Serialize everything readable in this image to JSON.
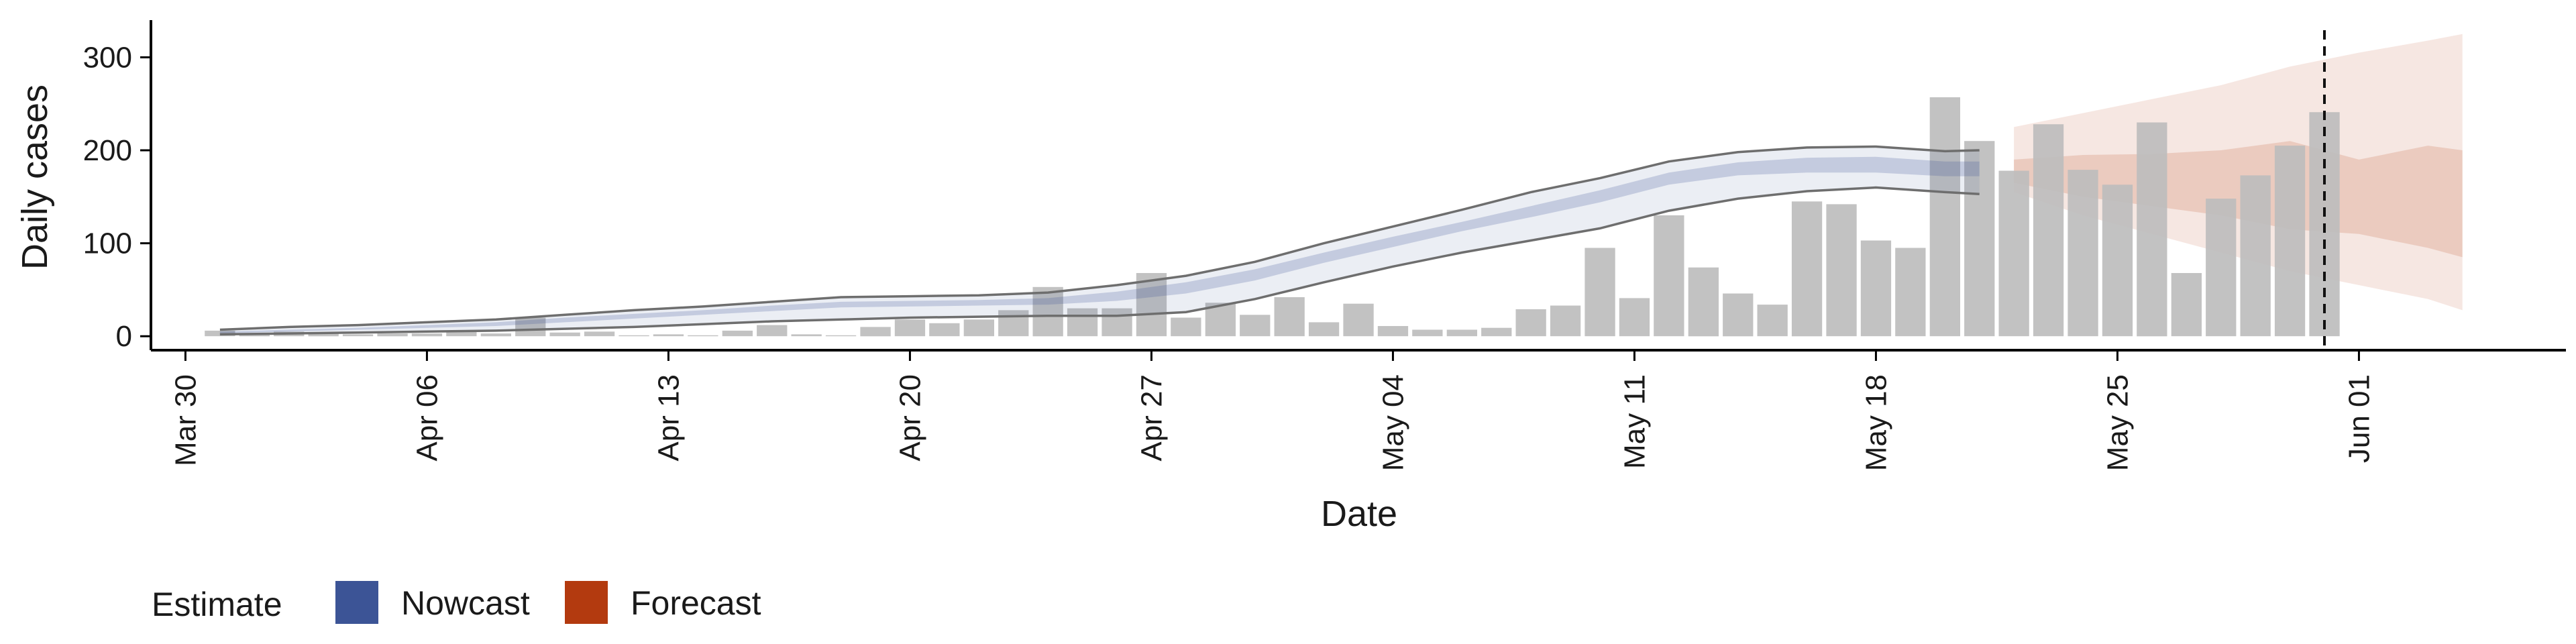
{
  "chart_data": {
    "type": "bar",
    "title": "",
    "xlabel": "Date",
    "ylabel": "Daily cases",
    "ylim": [
      -15,
      340
    ],
    "yticks": [
      0,
      100,
      200,
      300
    ],
    "xlim": [
      "2020-03-29",
      "2020-06-07"
    ],
    "xticks": [
      {
        "date": "2020-03-30",
        "label": "Mar 30"
      },
      {
        "date": "2020-04-06",
        "label": "Apr 06"
      },
      {
        "date": "2020-04-13",
        "label": "Apr 13"
      },
      {
        "date": "2020-04-20",
        "label": "Apr 20"
      },
      {
        "date": "2020-04-27",
        "label": "Apr 27"
      },
      {
        "date": "2020-05-04",
        "label": "May 04"
      },
      {
        "date": "2020-05-11",
        "label": "May 11"
      },
      {
        "date": "2020-05-18",
        "label": "May 18"
      },
      {
        "date": "2020-05-25",
        "label": "May 25"
      },
      {
        "date": "2020-06-01",
        "label": "Jun 01"
      }
    ],
    "grid": false,
    "bars": {
      "name": "Daily cases",
      "color": "#bdbdbd",
      "dates": [
        "2020-03-31",
        "2020-04-01",
        "2020-04-02",
        "2020-04-03",
        "2020-04-04",
        "2020-04-05",
        "2020-04-06",
        "2020-04-07",
        "2020-04-08",
        "2020-04-09",
        "2020-04-10",
        "2020-04-11",
        "2020-04-12",
        "2020-04-13",
        "2020-04-14",
        "2020-04-15",
        "2020-04-16",
        "2020-04-17",
        "2020-04-18",
        "2020-04-19",
        "2020-04-20",
        "2020-04-21",
        "2020-04-22",
        "2020-04-23",
        "2020-04-24",
        "2020-04-25",
        "2020-04-26",
        "2020-04-27",
        "2020-04-28",
        "2020-04-29",
        "2020-04-30",
        "2020-05-01",
        "2020-05-02",
        "2020-05-03",
        "2020-05-04",
        "2020-05-05",
        "2020-05-06",
        "2020-05-07",
        "2020-05-08",
        "2020-05-09",
        "2020-05-10",
        "2020-05-11",
        "2020-05-12",
        "2020-05-13",
        "2020-05-14",
        "2020-05-15",
        "2020-05-16",
        "2020-05-17",
        "2020-05-18",
        "2020-05-19",
        "2020-05-20",
        "2020-05-21",
        "2020-05-22",
        "2020-05-23",
        "2020-05-24",
        "2020-05-25",
        "2020-05-26",
        "2020-05-27",
        "2020-05-28",
        "2020-05-29",
        "2020-05-30",
        "2020-05-31"
      ],
      "values": [
        6,
        3,
        5,
        3,
        2,
        3,
        3,
        5,
        3,
        20,
        4,
        5,
        1,
        2,
        1,
        6,
        12,
        2,
        1,
        10,
        18,
        14,
        18,
        28,
        53,
        30,
        30,
        68,
        20,
        36,
        23,
        42,
        15,
        35,
        11,
        7,
        7,
        9,
        29,
        33,
        95,
        41,
        130,
        74,
        46,
        34,
        145,
        142,
        103,
        95,
        257,
        210,
        178,
        228,
        179,
        163,
        230,
        68,
        148,
        173,
        205,
        241
      ]
    },
    "nowcast": {
      "name": "Nowcast",
      "color": "#3c5496",
      "dates": [
        "2020-03-31",
        "2020-04-02",
        "2020-04-04",
        "2020-04-06",
        "2020-04-08",
        "2020-04-10",
        "2020-04-12",
        "2020-04-14",
        "2020-04-16",
        "2020-04-18",
        "2020-04-20",
        "2020-04-22",
        "2020-04-24",
        "2020-04-26",
        "2020-04-28",
        "2020-04-30",
        "2020-05-02",
        "2020-05-04",
        "2020-05-06",
        "2020-05-08",
        "2020-05-10",
        "2020-05-12",
        "2020-05-14",
        "2020-05-16",
        "2020-05-18",
        "2020-05-20",
        "2020-05-21"
      ],
      "outer_upper": [
        7,
        10,
        12,
        15,
        18,
        23,
        28,
        32,
        37,
        42,
        43,
        44,
        47,
        55,
        65,
        80,
        100,
        118,
        136,
        155,
        170,
        188,
        198,
        203,
        204,
        199,
        200
      ],
      "outer_lower": [
        2,
        3,
        4,
        5,
        6,
        8,
        10,
        13,
        16,
        18,
        20,
        21,
        22,
        22,
        26,
        40,
        58,
        75,
        90,
        103,
        116,
        135,
        148,
        156,
        160,
        155,
        153
      ],
      "inner_upper": [
        5,
        7,
        9,
        12,
        15,
        20,
        24,
        28,
        33,
        37,
        38,
        39,
        41,
        48,
        58,
        72,
        90,
        107,
        123,
        140,
        157,
        176,
        187,
        192,
        193,
        188,
        188
      ],
      "inner_lower": [
        3,
        5,
        7,
        9,
        11,
        15,
        19,
        23,
        27,
        31,
        32,
        33,
        34,
        38,
        46,
        60,
        79,
        96,
        113,
        128,
        144,
        163,
        173,
        176,
        176,
        172,
        172
      ]
    },
    "forecast": {
      "name": "Forecast",
      "color": "#b33a0f",
      "dates": [
        "2020-05-22",
        "2020-05-24",
        "2020-05-26",
        "2020-05-28",
        "2020-05-30",
        "2020-06-01",
        "2020-06-03",
        "2020-06-04"
      ],
      "outer_upper": [
        225,
        240,
        255,
        270,
        290,
        305,
        318,
        325
      ],
      "outer_lower": [
        155,
        130,
        110,
        90,
        70,
        55,
        40,
        28
      ],
      "inner_upper": [
        190,
        195,
        196,
        200,
        210,
        190,
        205,
        200
      ],
      "inner_lower": [
        165,
        150,
        140,
        130,
        115,
        110,
        95,
        85
      ]
    },
    "reference_line": {
      "date": "2020-05-31",
      "style": "dashed"
    },
    "legend": {
      "position": "bottom-left",
      "title": "Estimate",
      "items": [
        {
          "label": "Nowcast",
          "color": "#3c5496"
        },
        {
          "label": "Forecast",
          "color": "#b33a0f"
        }
      ]
    }
  }
}
